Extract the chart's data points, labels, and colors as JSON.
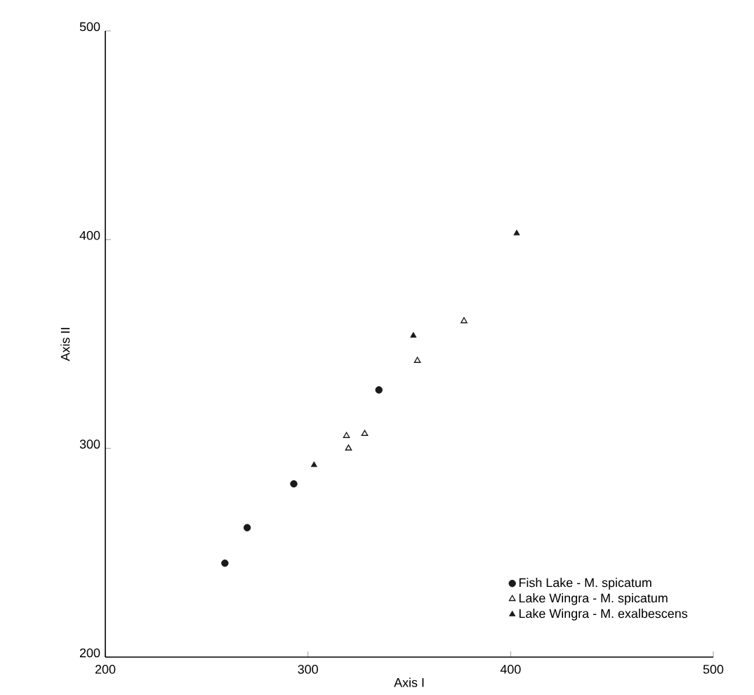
{
  "chart_data": {
    "type": "scatter",
    "xlabel": "Axis I",
    "ylabel": "Axis II",
    "xlim": [
      200,
      500
    ],
    "ylim": [
      200,
      500
    ],
    "xticks": [
      200,
      300,
      400,
      500
    ],
    "yticks": [
      200,
      300,
      400,
      500
    ],
    "grid": false,
    "legend": "bottom right",
    "series": [
      {
        "name": "Fish Lake - M. spicatum",
        "color": "#1a1a1a",
        "marker": "circle",
        "x": [
          259,
          270,
          293,
          335
        ],
        "values": [
          245,
          262,
          283,
          328
        ]
      },
      {
        "name": "Lake Wingra - M. spicatum",
        "color": "#1a1a1a",
        "marker": "triangle-open",
        "x": [
          319,
          320,
          328,
          354,
          377
        ],
        "values": [
          306,
          300,
          307,
          342,
          361
        ]
      },
      {
        "name": "Lake Wingra - M. exalbescens",
        "color": "#1a1a1a",
        "marker": "triangle",
        "x": [
          303,
          352,
          403
        ],
        "values": [
          292,
          354,
          403
        ]
      }
    ]
  }
}
